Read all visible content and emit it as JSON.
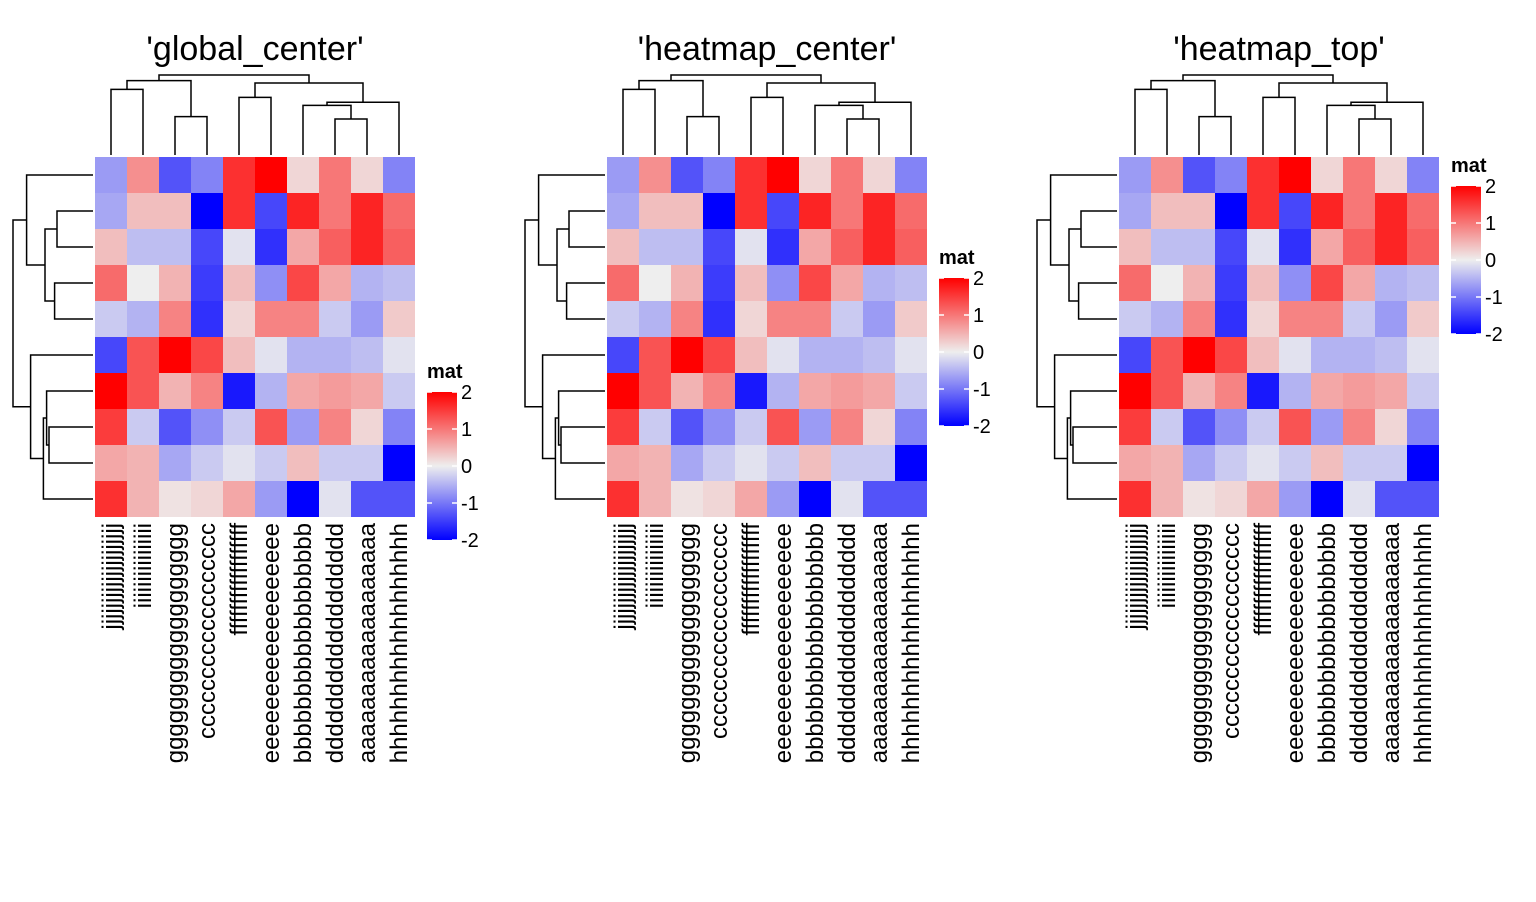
{
  "chart_data": {
    "type": "heatmap",
    "rows": 10,
    "columns": [
      "jjjjjjjjjjjjjjjjjjjj",
      "iiiiiiiiiiiiiiii",
      "gggggggggggggggggg",
      "cccccccccccccccccc",
      "ffffffffffffffffff",
      "eeeeeeeeeeeeeeeeee",
      "bbbbbbbbbbbbbbbbbb",
      "dddddddddddddddddd",
      "aaaaaaaaaaaaaaaaaa",
      "hhhhhhhhhhhhhhhhhh"
    ],
    "values": [
      [
        -0.7,
        0.8,
        -1.3,
        -0.9,
        1.6,
        2.1,
        0.2,
        1.0,
        0.2,
        -0.9
      ],
      [
        -0.6,
        0.4,
        0.4,
        -2.0,
        1.6,
        -1.4,
        1.7,
        1.0,
        1.7,
        1.1
      ],
      [
        0.4,
        -0.4,
        -0.4,
        -1.4,
        -0.1,
        -1.6,
        0.6,
        1.2,
        1.7,
        1.2
      ],
      [
        1.1,
        0.0,
        0.5,
        -1.5,
        0.4,
        -0.8,
        1.4,
        0.6,
        -0.5,
        -0.4
      ],
      [
        -0.3,
        -0.5,
        0.9,
        -1.6,
        0.2,
        0.9,
        0.9,
        -0.3,
        -0.7,
        0.3
      ],
      [
        -1.4,
        1.3,
        2.1,
        1.4,
        0.4,
        -0.1,
        -0.5,
        -0.5,
        -0.4,
        -0.1
      ],
      [
        2.1,
        1.3,
        0.5,
        0.9,
        -1.8,
        -0.5,
        0.6,
        0.7,
        0.6,
        -0.3
      ],
      [
        1.5,
        -0.3,
        -1.3,
        -0.8,
        -0.3,
        1.3,
        -0.7,
        0.9,
        0.2,
        -0.9
      ],
      [
        0.6,
        0.5,
        -0.6,
        -0.3,
        -0.1,
        -0.3,
        0.4,
        -0.3,
        -0.3,
        -2.3
      ],
      [
        1.6,
        0.5,
        0.1,
        0.2,
        0.6,
        -0.7,
        -2.1,
        -0.1,
        -1.3,
        -1.3
      ]
    ],
    "panels": [
      {
        "title": "'global_center'",
        "legend_title": "mat",
        "legend_position": "global_center"
      },
      {
        "title": "'heatmap_center'",
        "legend_title": "mat",
        "legend_position": "heatmap_center"
      },
      {
        "title": "'heatmap_top'",
        "legend_title": "mat",
        "legend_position": "heatmap_top"
      }
    ],
    "color_scale": {
      "domain": [
        -2,
        0,
        2
      ],
      "colors": [
        "#0000ff",
        "#eeeeee",
        "#ff0000"
      ],
      "legend_ticks": [
        "2",
        "1",
        "0",
        "-1",
        "-2"
      ],
      "legend_tick_values": [
        2,
        1,
        0,
        -1,
        -2
      ]
    },
    "column_dendrogram": "yes",
    "row_dendrogram": "yes"
  }
}
